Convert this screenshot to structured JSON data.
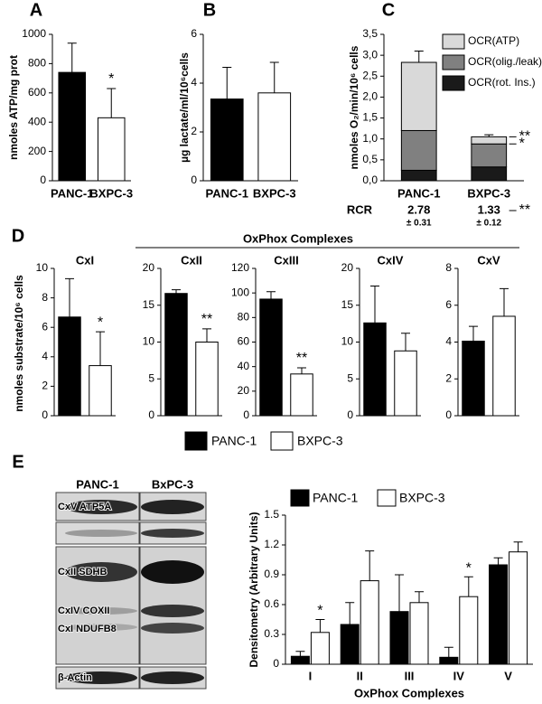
{
  "chart_data": [
    {
      "type": "bar",
      "panel": "A",
      "ylabel": "nmoles ATP/mg prot",
      "categories": [
        "PANC-1",
        "BXPC-3"
      ],
      "values": [
        740,
        430
      ],
      "errors": [
        200,
        200
      ],
      "colors": [
        "#000000",
        "#ffffff"
      ],
      "annotations": [
        null,
        "*"
      ],
      "ylim": [
        0,
        1000
      ],
      "yticks": [
        0,
        200,
        400,
        600,
        800,
        1000
      ]
    },
    {
      "type": "bar",
      "panel": "B",
      "ylabel": "µg lactate/ml/10⁶cells",
      "categories": [
        "PANC-1",
        "BXPC-3"
      ],
      "values": [
        3.35,
        3.6
      ],
      "errors": [
        1.3,
        1.25
      ],
      "colors": [
        "#000000",
        "#ffffff"
      ],
      "ylim": [
        0,
        6
      ],
      "yticks": [
        0,
        2,
        4,
        6
      ]
    },
    {
      "type": "stacked-bar",
      "panel": "C",
      "ylabel": "nmoles O₂/min/10⁶ cells",
      "categories": [
        "PANC-1",
        "BXPC-3"
      ],
      "series": [
        {
          "name": "OCR(rot. Ins.)",
          "color": "#1a1a1a",
          "values": [
            0.25,
            0.33
          ],
          "errors": [
            0.07,
            0.07
          ]
        },
        {
          "name": "OCR(olig./leak)",
          "color": "#808080",
          "values": [
            0.95,
            0.55
          ],
          "errors": [
            0.15,
            0.06
          ],
          "annotations": [
            null,
            "*"
          ]
        },
        {
          "name": "OCR(ATP)",
          "color": "#d9d9d9",
          "values": [
            1.63,
            0.17
          ],
          "errors": [
            0.27,
            0.05
          ],
          "annotations": [
            null,
            "**"
          ]
        }
      ],
      "ylim": [
        0,
        3.5
      ],
      "yticks": [
        {
          "value": 0,
          "label": "0,0"
        },
        {
          "value": 0.5,
          "label": "0,5"
        },
        {
          "value": 1,
          "label": "1,0"
        },
        {
          "value": 1.5,
          "label": "1,5"
        },
        {
          "value": 2,
          "label": "2,0"
        },
        {
          "value": 2.5,
          "label": "2,5"
        },
        {
          "value": 3,
          "label": "3,0"
        },
        {
          "value": 3.5,
          "label": "3,5"
        }
      ],
      "rcr": {
        "label": "RCR",
        "values": [
          2.78,
          1.33
        ],
        "error_labels": [
          "± 0.31",
          "± 0.12"
        ],
        "annotation": "**"
      }
    },
    {
      "type": "bar-panels",
      "panel": "D",
      "title": "OxPhox Complexes",
      "ylabel": "nmoles substrate/10⁶ cells",
      "series": [
        {
          "name": "PANC-1",
          "color": "#000000"
        },
        {
          "name": "BXPC-3",
          "color": "#ffffff"
        }
      ],
      "panels": [
        {
          "title": "CxI",
          "values": [
            6.7,
            3.4
          ],
          "errors": [
            2.6,
            2.3
          ],
          "annotations": [
            null,
            "*"
          ],
          "ylim": [
            0,
            10
          ],
          "yticks": [
            0,
            2,
            4,
            6,
            8,
            10
          ]
        },
        {
          "title": "CxII",
          "values": [
            16.6,
            10
          ],
          "errors": [
            0.5,
            1.8
          ],
          "annotations": [
            null,
            "**"
          ],
          "ylim": [
            0,
            20
          ],
          "yticks": [
            0,
            5,
            10,
            15,
            20
          ]
        },
        {
          "title": "CxIII",
          "values": [
            95,
            34
          ],
          "errors": [
            6,
            5
          ],
          "annotations": [
            null,
            "**"
          ],
          "ylim": [
            0,
            120
          ],
          "yticks": [
            0,
            20,
            40,
            60,
            80,
            100,
            120
          ]
        },
        {
          "title": "CxIV",
          "values": [
            12.6,
            8.8
          ],
          "errors": [
            5,
            2.4
          ],
          "ylim": [
            0,
            20
          ],
          "yticks": [
            0,
            5,
            10,
            15,
            20
          ]
        },
        {
          "title": "CxV",
          "values": [
            4.05,
            5.4
          ],
          "errors": [
            0.8,
            1.5
          ],
          "ylim": [
            0,
            8
          ],
          "yticks": [
            0,
            2,
            4,
            6,
            8
          ]
        }
      ]
    },
    {
      "type": "grouped-bar",
      "panel": "E",
      "ylabel": "Densitometry (Arbitrary Units)",
      "xlabel": "OxPhox Complexes",
      "categories": [
        "I",
        "II",
        "III",
        "IV",
        "V"
      ],
      "series": [
        {
          "name": "PANC-1",
          "color": "#000000",
          "values": [
            0.08,
            0.4,
            0.53,
            0.07,
            1.0
          ],
          "errors": [
            0.05,
            0.22,
            0.37,
            0.1,
            0.07
          ]
        },
        {
          "name": "BXPC-3",
          "color": "#ffffff",
          "values": [
            0.32,
            0.84,
            0.62,
            0.68,
            1.13
          ],
          "errors": [
            0.13,
            0.3,
            0.11,
            0.2,
            0.1
          ],
          "annotations": [
            "*",
            null,
            null,
            "*",
            null
          ]
        }
      ],
      "ylim": [
        0,
        1.5
      ],
      "yticks": [
        0,
        0.3,
        0.6,
        0.9,
        1.2,
        1.5
      ],
      "blot": {
        "lanes": [
          "PANC-1",
          "BxPC-3"
        ],
        "bands": [
          "CxV ATP5A",
          "CxII SDHB",
          "CxIV COXII",
          "CxI NDUFB8",
          "β-Actin"
        ]
      }
    }
  ]
}
